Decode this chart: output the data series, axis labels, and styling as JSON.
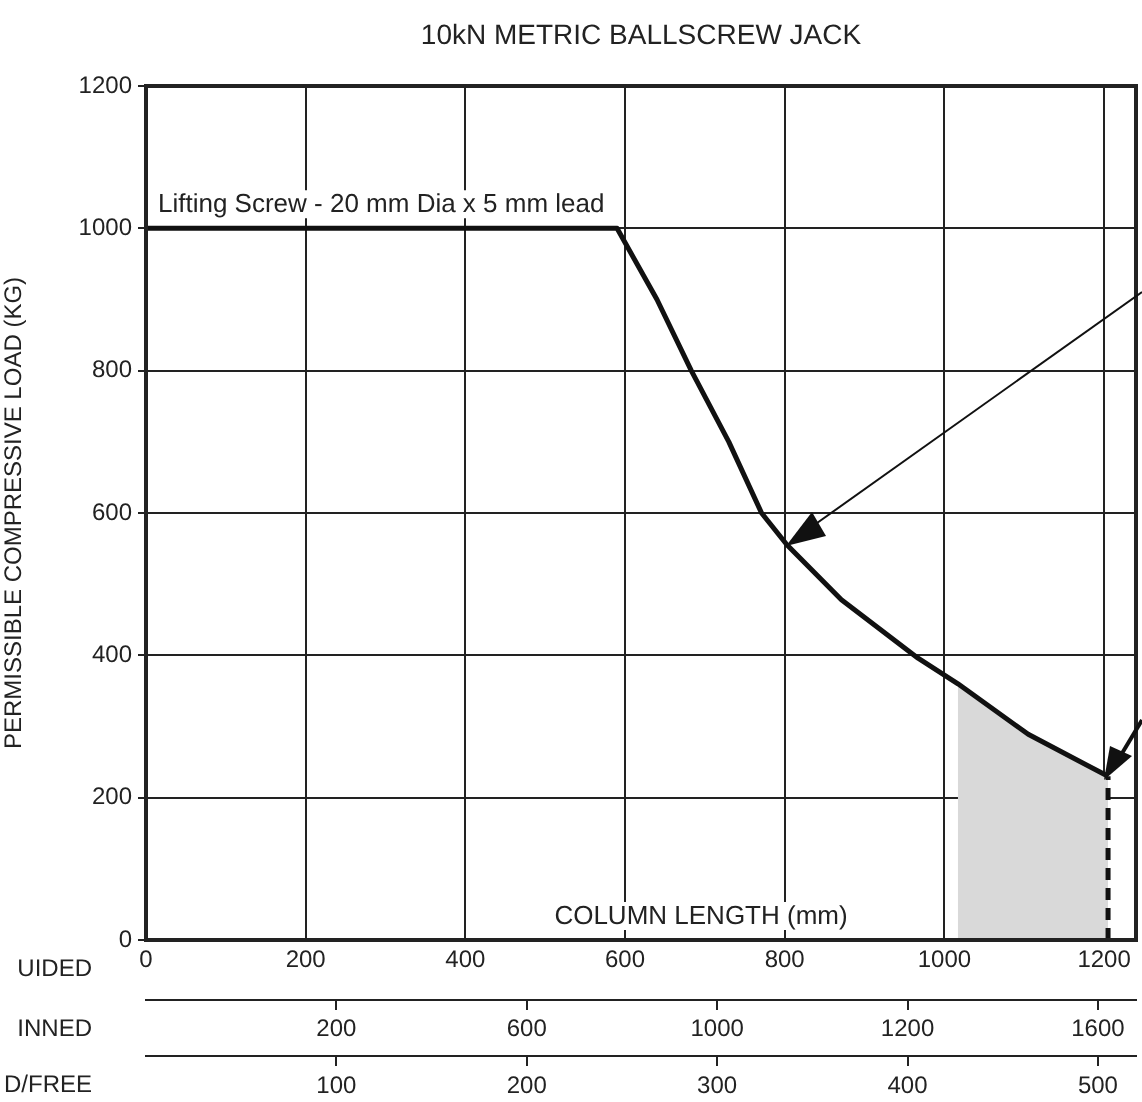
{
  "chart_data": {
    "type": "line",
    "title": "10kN METRIC BALLSCREW JACK",
    "xlabel": "COLUMN LENGTH (mm)",
    "ylabel": "PERMISSIBLE COMPRESSIVE LOAD (KG)",
    "x": [
      0,
      590,
      640,
      683,
      730,
      771,
      803,
      871,
      967,
      1017,
      1105,
      1205
    ],
    "series": [
      {
        "name": "Lifting Screw - 20 mm Dia x 5 mm lead",
        "color": "#111111",
        "values": [
          1000,
          1000,
          900,
          800,
          700,
          600,
          555,
          478,
          396,
          360,
          289,
          230
        ]
      }
    ],
    "xlim": [
      0,
      1240
    ],
    "xticks": [
      0,
      200,
      400,
      600,
      800,
      1000,
      1200
    ],
    "x2lim": [
      0,
      520
    ],
    "x2ticks": [
      100,
      200,
      300,
      400,
      500
    ],
    "ylim": [
      0,
      1200
    ],
    "yticks": [
      0,
      200,
      400,
      600,
      800,
      1000,
      1200
    ],
    "bands": [
      {
        "axis": "x",
        "from": 1017,
        "to": 1205,
        "color": "#d9d9d9"
      }
    ],
    "ref_lines": [
      {
        "axis": "x",
        "value": 1205,
        "line_style": "dashed"
      }
    ],
    "annotations": [
      "UIDED",
      "INNED",
      "D/FREE",
      "200",
      "600",
      "1000",
      "1200",
      "1600"
    ],
    "grid": true,
    "legend": false,
    "marker": "none",
    "line_style": "solid"
  }
}
